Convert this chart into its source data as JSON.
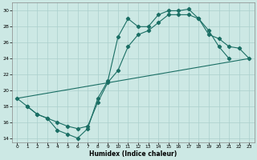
{
  "xlabel": "Humidex (Indice chaleur)",
  "bg_color": "#cce8e4",
  "grid_color": "#aacfcc",
  "line_color": "#1a6e64",
  "xlim": [
    -0.5,
    23.5
  ],
  "ylim": [
    13.5,
    31.0
  ],
  "xticks": [
    0,
    1,
    2,
    3,
    4,
    5,
    6,
    7,
    8,
    9,
    10,
    11,
    12,
    13,
    14,
    15,
    16,
    17,
    18,
    19,
    20,
    21,
    22,
    23
  ],
  "yticks": [
    14,
    16,
    18,
    20,
    22,
    24,
    26,
    28,
    30
  ],
  "curve1_x": [
    0,
    1,
    2,
    3,
    4,
    5,
    6,
    7,
    8,
    9,
    10,
    11,
    12,
    13,
    14,
    15,
    16,
    17,
    18,
    19,
    20,
    21
  ],
  "curve1_y": [
    19.0,
    18.0,
    17.0,
    16.5,
    15.0,
    14.5,
    14.0,
    15.2,
    19.0,
    21.2,
    26.7,
    29.0,
    28.0,
    28.0,
    29.5,
    30.0,
    30.0,
    30.2,
    29.0,
    27.5,
    25.5,
    24.0
  ],
  "curve2_x": [
    0,
    23
  ],
  "curve2_y": [
    19.0,
    24.0
  ],
  "curve3_x": [
    1,
    2,
    3,
    4,
    5,
    6,
    7,
    8,
    9,
    10,
    11,
    12,
    13,
    14,
    15,
    16,
    17,
    18,
    19,
    20,
    21,
    22,
    23
  ],
  "curve3_y": [
    18.0,
    17.0,
    16.5,
    16.0,
    15.5,
    15.2,
    15.5,
    18.5,
    21.0,
    22.5,
    25.5,
    27.0,
    27.5,
    28.5,
    29.5,
    29.5,
    29.5,
    29.0,
    27.0,
    26.5,
    25.5,
    25.3,
    24.0
  ]
}
